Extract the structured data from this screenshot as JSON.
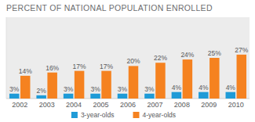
{
  "chart_data": {
    "type": "bar",
    "title": "PERCENT OF NATIONAL POPULATION ENROLLED",
    "categories": [
      "2002",
      "2003",
      "2004",
      "2005",
      "2006",
      "2007",
      "2008",
      "2009",
      "2010"
    ],
    "series": [
      {
        "name": "3-year-olds",
        "color": "#1f9bd7",
        "values": [
          3,
          2,
          3,
          3,
          3,
          3,
          4,
          4,
          4
        ],
        "value_labels": [
          "3%",
          "2%",
          "3%",
          "3%",
          "3%",
          "3%",
          "4%",
          "4%",
          "4%"
        ]
      },
      {
        "name": "4-year-olds",
        "color": "#f58220",
        "values": [
          14,
          16,
          17,
          17,
          20,
          22,
          24,
          25,
          27
        ],
        "value_labels": [
          "14%",
          "16%",
          "17%",
          "17%",
          "20%",
          "22%",
          "24%",
          "25%",
          "27%"
        ]
      }
    ],
    "ylim": [
      0,
      50
    ],
    "data_labels": true,
    "tick_labels": "x",
    "grid": false,
    "legend": "bottom"
  }
}
